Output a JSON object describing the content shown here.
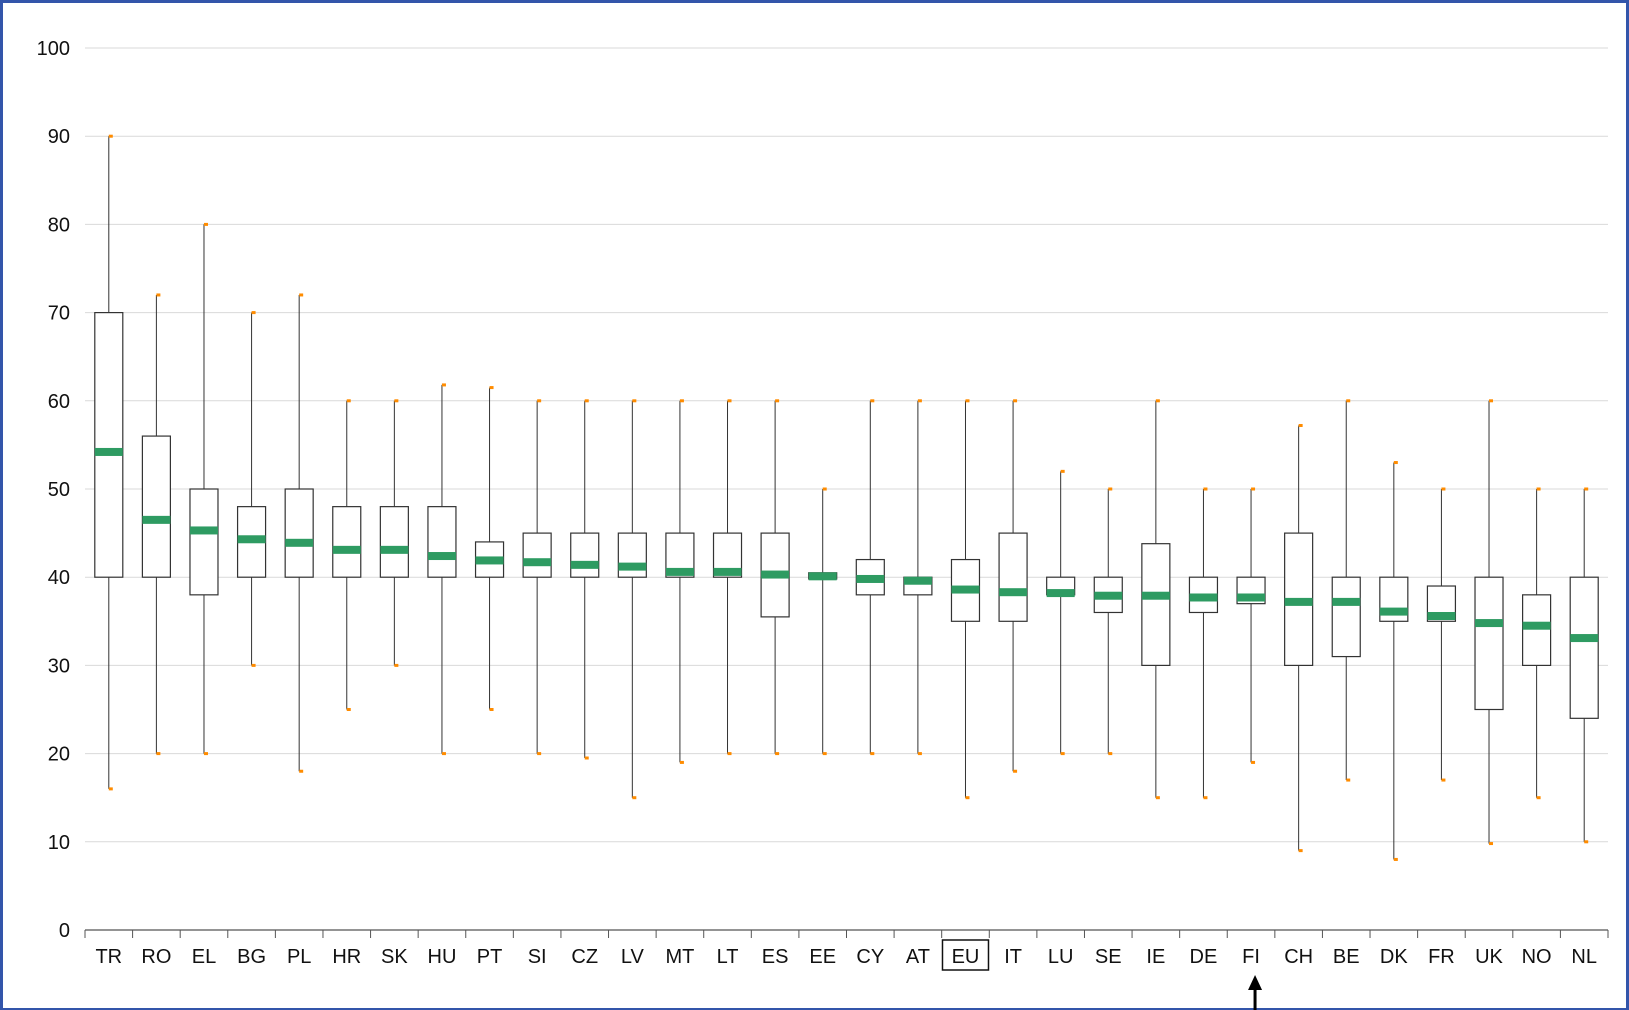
{
  "colors": {
    "frame_border": "#3355aa",
    "gridline": "#d9d9d9",
    "box_stroke": "#333333",
    "median": "#2e9b62",
    "whisker_cap": "#ff8c00",
    "axis": "#555555"
  },
  "highlight": {
    "boxed_category": "EU",
    "arrow_category": "FI"
  },
  "chart_data": {
    "type": "boxplot",
    "title": "",
    "xlabel": "",
    "ylabel": "",
    "ylim": [
      0,
      100
    ],
    "yticks": [
      0,
      10,
      20,
      30,
      40,
      50,
      60,
      70,
      80,
      90,
      100
    ],
    "grid": true,
    "legend": "none",
    "categories": [
      "TR",
      "RO",
      "EL",
      "BG",
      "PL",
      "HR",
      "SK",
      "HU",
      "PT",
      "SI",
      "CZ",
      "LV",
      "MT",
      "LT",
      "ES",
      "EE",
      "CY",
      "AT",
      "EU",
      "IT",
      "LU",
      "SE",
      "IE",
      "DE",
      "FI",
      "CH",
      "BE",
      "DK",
      "FR",
      "UK",
      "NO",
      "NL"
    ],
    "boxes": [
      {
        "min": 16,
        "q1": 40,
        "median": 54.2,
        "q3": 70,
        "max": 90
      },
      {
        "min": 20,
        "q1": 40,
        "median": 46.5,
        "q3": 56,
        "max": 72
      },
      {
        "min": 20,
        "q1": 38,
        "median": 45.3,
        "q3": 50,
        "max": 80
      },
      {
        "min": 30,
        "q1": 40,
        "median": 44.3,
        "q3": 48,
        "max": 70
      },
      {
        "min": 18,
        "q1": 40,
        "median": 43.9,
        "q3": 50,
        "max": 72
      },
      {
        "min": 25,
        "q1": 40,
        "median": 43.1,
        "q3": 48,
        "max": 60
      },
      {
        "min": 30,
        "q1": 40,
        "median": 43.1,
        "q3": 48,
        "max": 60
      },
      {
        "min": 20,
        "q1": 40,
        "median": 42.4,
        "q3": 48,
        "max": 61.8
      },
      {
        "min": 25,
        "q1": 40,
        "median": 41.9,
        "q3": 44,
        "max": 61.5
      },
      {
        "min": 20,
        "q1": 40,
        "median": 41.7,
        "q3": 45,
        "max": 60
      },
      {
        "min": 19.5,
        "q1": 40,
        "median": 41.4,
        "q3": 45,
        "max": 60
      },
      {
        "min": 15,
        "q1": 40,
        "median": 41.2,
        "q3": 45,
        "max": 60
      },
      {
        "min": 19,
        "q1": 40,
        "median": 40.6,
        "q3": 45,
        "max": 60
      },
      {
        "min": 20,
        "q1": 40,
        "median": 40.6,
        "q3": 45,
        "max": 60
      },
      {
        "min": 20,
        "q1": 35.5,
        "median": 40.3,
        "q3": 45,
        "max": 60
      },
      {
        "min": 20,
        "q1": 39.8,
        "median": 40.1,
        "q3": 40.5,
        "max": 50
      },
      {
        "min": 20,
        "q1": 38,
        "median": 39.8,
        "q3": 42,
        "max": 60
      },
      {
        "min": 20,
        "q1": 38,
        "median": 39.6,
        "q3": 40,
        "max": 60
      },
      {
        "min": 15,
        "q1": 35,
        "median": 38.6,
        "q3": 42,
        "max": 60
      },
      {
        "min": 18,
        "q1": 35,
        "median": 38.3,
        "q3": 45,
        "max": 60
      },
      {
        "min": 20,
        "q1": 38,
        "median": 38.2,
        "q3": 40,
        "max": 52
      },
      {
        "min": 20,
        "q1": 36,
        "median": 37.9,
        "q3": 40,
        "max": 50
      },
      {
        "min": 15,
        "q1": 30,
        "median": 37.9,
        "q3": 43.8,
        "max": 60
      },
      {
        "min": 15,
        "q1": 36,
        "median": 37.7,
        "q3": 40,
        "max": 50
      },
      {
        "min": 19,
        "q1": 37,
        "median": 37.7,
        "q3": 40,
        "max": 50
      },
      {
        "min": 9,
        "q1": 30,
        "median": 37.2,
        "q3": 45,
        "max": 57.2
      },
      {
        "min": 17,
        "q1": 31,
        "median": 37.2,
        "q3": 40,
        "max": 60
      },
      {
        "min": 8,
        "q1": 35,
        "median": 36.1,
        "q3": 40,
        "max": 53
      },
      {
        "min": 17,
        "q1": 35,
        "median": 35.6,
        "q3": 39,
        "max": 50
      },
      {
        "min": 9.8,
        "q1": 25,
        "median": 34.8,
        "q3": 40,
        "max": 60
      },
      {
        "min": 15,
        "q1": 30,
        "median": 34.5,
        "q3": 38,
        "max": 50
      },
      {
        "min": 10,
        "q1": 24,
        "median": 33.1,
        "q3": 40,
        "max": 50
      }
    ]
  }
}
